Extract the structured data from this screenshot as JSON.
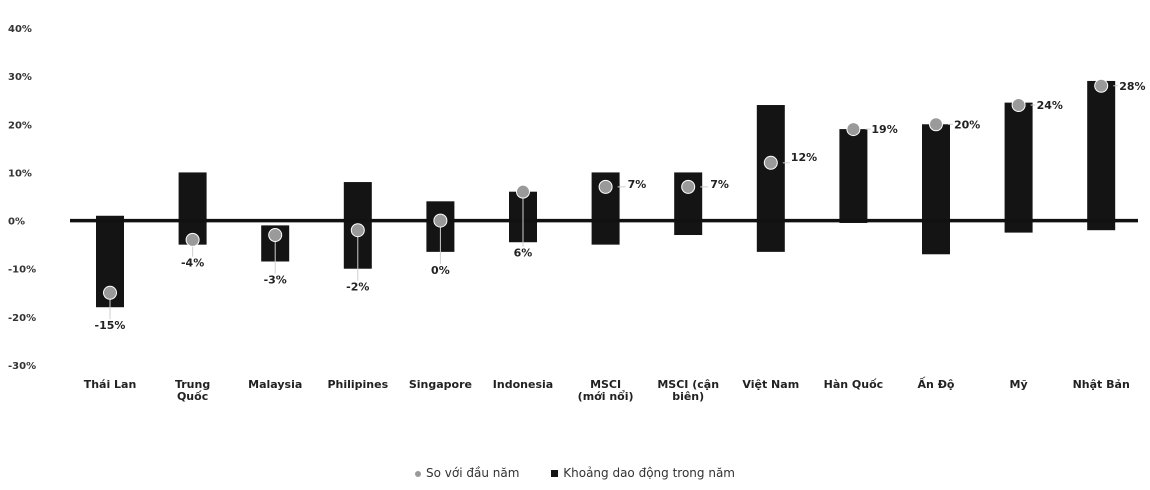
{
  "chart_data": {
    "type": "bar",
    "categories": [
      [
        "Thái Lan"
      ],
      [
        "Trung",
        "Quốc"
      ],
      [
        "Malaysia"
      ],
      [
        "Philipines"
      ],
      [
        "Singapore"
      ],
      [
        "Indonesia"
      ],
      [
        "MSCI",
        "(mới nổi)"
      ],
      [
        "MSCI (cận",
        "biên)"
      ],
      [
        "Việt Nam"
      ],
      [
        "Hàn Quốc"
      ],
      [
        "Ấn Độ"
      ],
      [
        "Mỹ"
      ],
      [
        "Nhật Bản"
      ]
    ],
    "series": [
      {
        "name": "Khoảng dao động trong năm",
        "type": "range",
        "low": [
          -18,
          -5,
          -8.5,
          -10,
          -6.5,
          -4.5,
          -5,
          -3,
          -6.5,
          -0.5,
          -7,
          -2.5,
          -2
        ],
        "high": [
          1,
          10,
          -1,
          8,
          4,
          6,
          10,
          10,
          24,
          19,
          20,
          24.5,
          29
        ]
      },
      {
        "name": "So với đầu năm",
        "type": "point",
        "values": [
          -15,
          -4,
          -3,
          -2,
          0,
          6,
          7,
          7,
          12,
          19,
          20,
          24,
          28
        ],
        "labels": [
          "-15%",
          "-4%",
          "-3%",
          "-2%",
          "0%",
          "6%",
          "7%",
          "7%",
          "12%",
          "19%",
          "20%",
          "24%",
          "28%"
        ]
      }
    ],
    "yticks": [
      "40%",
      "30%",
      "20%",
      "10%",
      "0%",
      "-10%",
      "-20%",
      "-30%"
    ],
    "ylim": [
      -30,
      40
    ],
    "grid": false,
    "legend_position": "bottom-center",
    "colors": {
      "range": "#141414",
      "point": "#9a9a9a",
      "axis": "#111111"
    }
  }
}
